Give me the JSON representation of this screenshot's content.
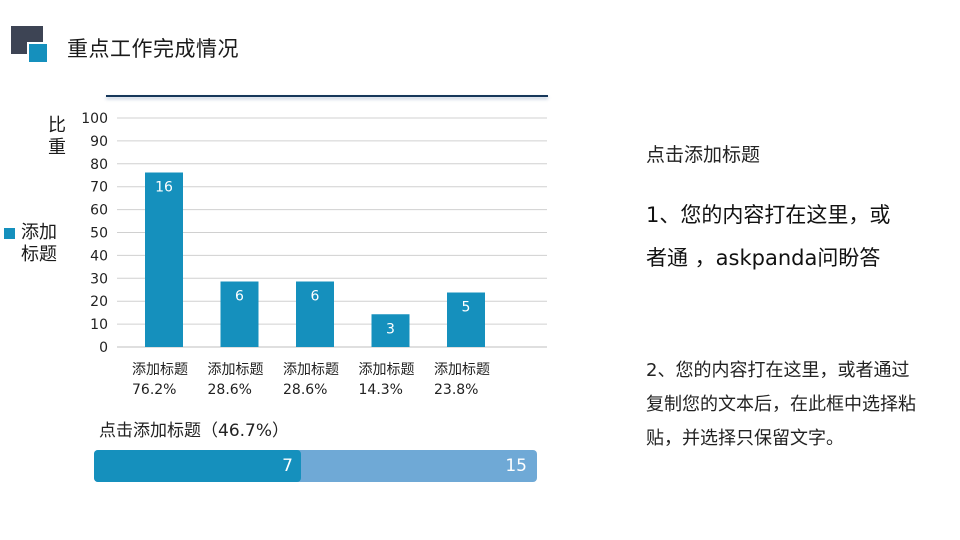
{
  "header": {
    "title": "重点工作完成情况"
  },
  "colors": {
    "accent": "#1590bd",
    "accent_light": "#6fa9d6",
    "dark": "#3d4454"
  },
  "chart_data": {
    "type": "bar",
    "categories": [
      "添加标题",
      "添加标题",
      "添加标题",
      "添加标题",
      "添加标题"
    ],
    "category_sublabels": [
      "76.2%",
      "28.6%",
      "28.6%",
      "14.3%",
      "23.8%"
    ],
    "values": [
      76.2,
      28.6,
      28.6,
      14.3,
      23.8
    ],
    "data_labels": [
      "16",
      "6",
      "6",
      "3",
      "5"
    ],
    "series": [
      {
        "name": "添加标题",
        "values": [
          76.2,
          28.6,
          28.6,
          14.3,
          23.8
        ]
      }
    ],
    "ylabel": "比重",
    "ylim": [
      0,
      100
    ],
    "yticks": [
      0,
      10,
      20,
      30,
      40,
      50,
      60,
      70,
      80,
      90,
      100
    ],
    "grid": true,
    "legend_position": "left",
    "color": "#1590bd"
  },
  "progress": {
    "label": "点击添加标题（46.7%）",
    "value": 7,
    "total": 15,
    "fraction": 0.467,
    "value_text": "7",
    "total_text": "15"
  },
  "side": {
    "heading": "点击添加标题",
    "paragraph1": "1、您的内容打在这里，或者通 ，askpanda问盼答",
    "paragraph2": "2、您的内容打在这里，或者通过复制您的文本后，在此框中选择粘贴，并选择只保留文字。"
  }
}
